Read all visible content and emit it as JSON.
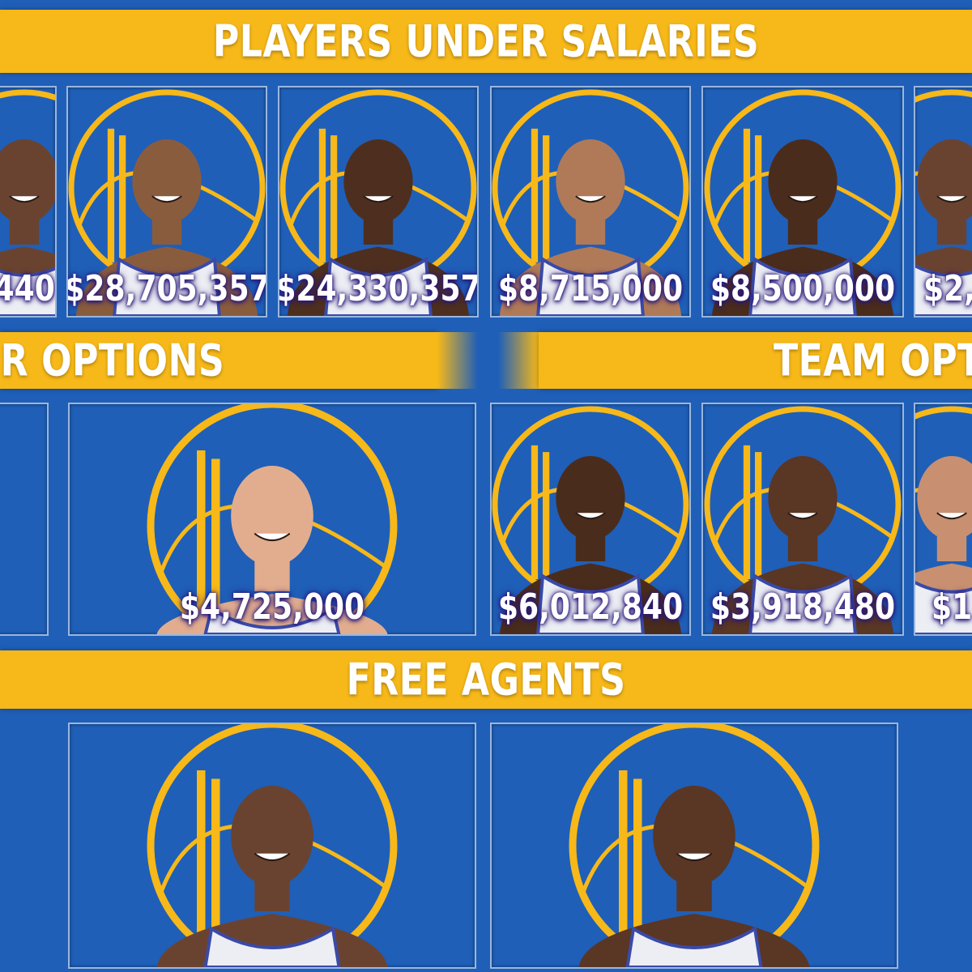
{
  "sections": {
    "salaries": "PLAYERS UNDER SALARIES",
    "player_options": "ER OPTIONS",
    "team_options": "TEAM OPTI",
    "free_agents": "FREE AGENTS"
  },
  "row1": [
    {
      "salary": "440",
      "skin": "#6a4330"
    },
    {
      "salary": "$28,705,357",
      "skin": "#8a5c3e"
    },
    {
      "salary": "$24,330,357",
      "skin": "#4e2f1f"
    },
    {
      "salary": "$8,715,000",
      "skin": "#b07a58"
    },
    {
      "salary": "$8,500,000",
      "skin": "#4a2c1c"
    },
    {
      "salary": "$2,",
      "skin": "#6a4330"
    }
  ],
  "row2_player": [
    {
      "salary": ""
    },
    {
      "salary": "$4,725,000",
      "skin": "#e2ad8e"
    }
  ],
  "row2_team": [
    {
      "salary": "$6,012,840",
      "skin": "#4a2c1c"
    },
    {
      "salary": "$3,918,480",
      "skin": "#5a3624"
    },
    {
      "salary": "$1",
      "skin": "#c89070"
    }
  ],
  "row3": [
    {
      "salary": "",
      "skin": "#6a4330"
    },
    {
      "salary": "",
      "skin": "#5a3624"
    }
  ],
  "colors": {
    "background": "#1f5fb8",
    "gold": "#f7b819",
    "white": "#ffffff"
  }
}
